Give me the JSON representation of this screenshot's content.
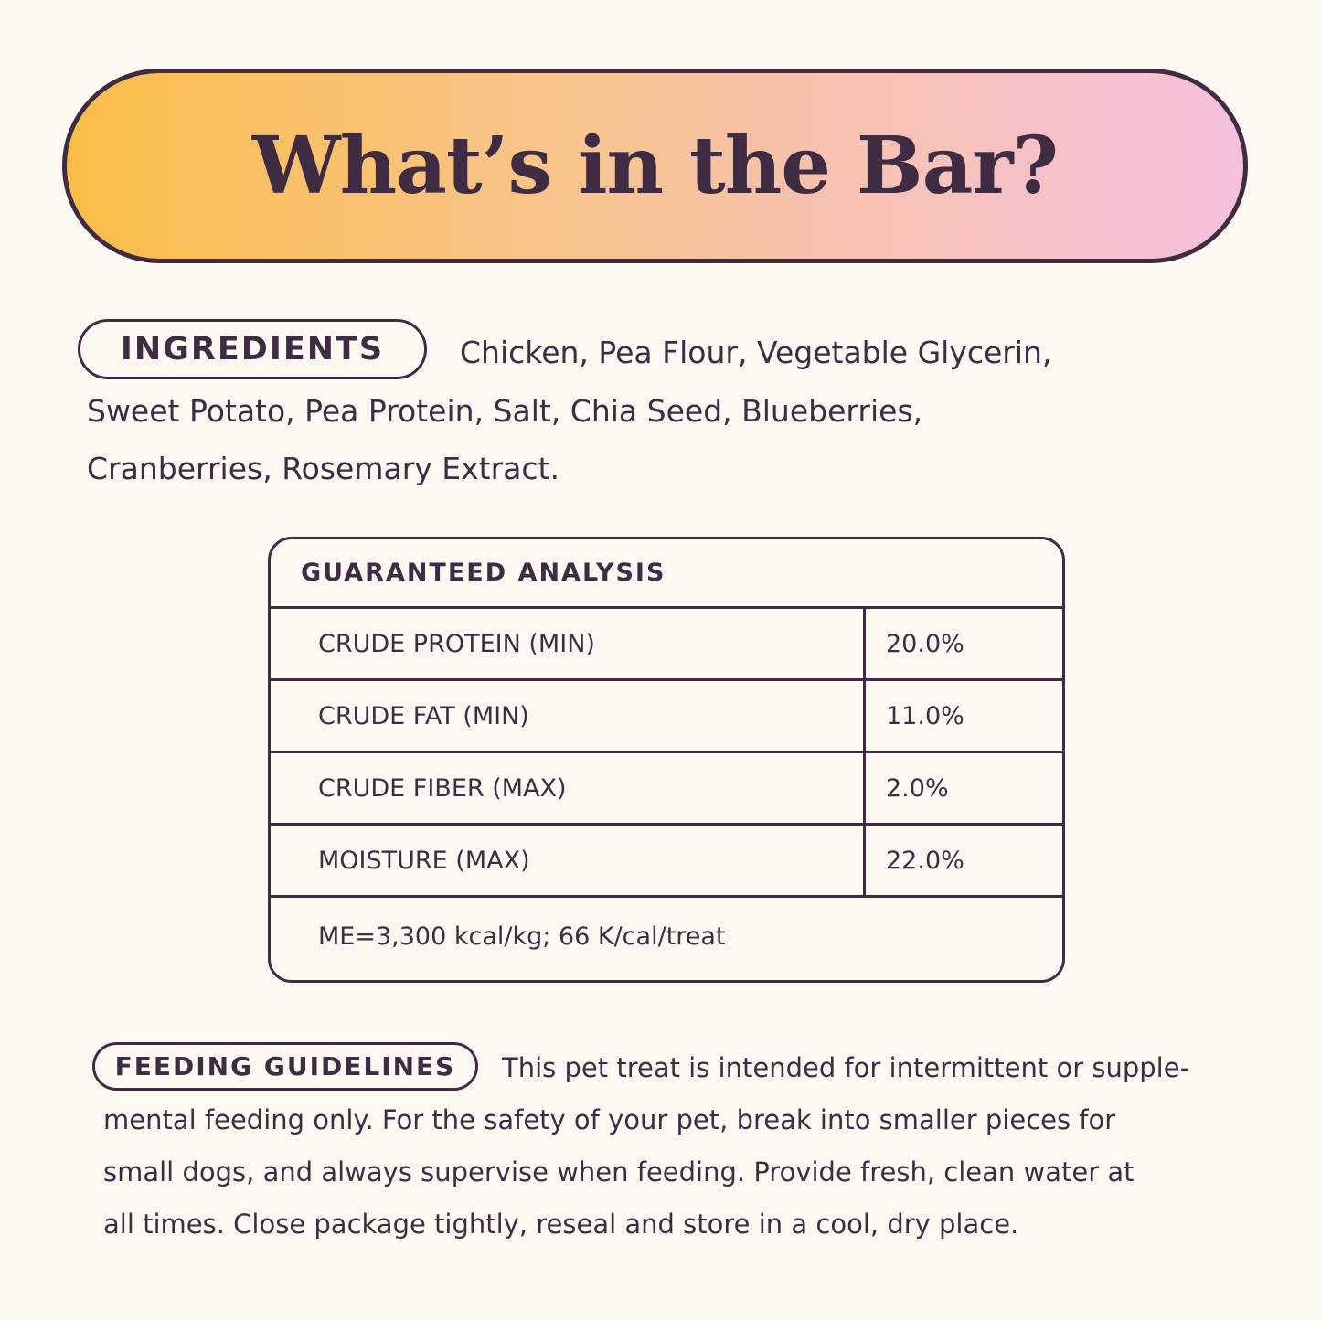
{
  "title": "What’s in the Bar?",
  "colors": {
    "text": "#3f2c42",
    "background": "#fdf8f1",
    "gradient_start": "#fbbd48",
    "gradient_end": "#f5c0dc"
  },
  "ingredients": {
    "label": "INGREDIENTS",
    "lines": [
      "Chicken, Pea Flour, Vegetable Glycerin,",
      "Sweet Potato, Pea Protein, Salt, Chia Seed, Blueberries,",
      "Cranberries, Rosemary Extract."
    ]
  },
  "analysis": {
    "header": "GUARANTEED ANALYSIS",
    "rows": [
      {
        "label": "CRUDE PROTEIN (MIN)",
        "value": "20.0%"
      },
      {
        "label": "CRUDE FAT (MIN)",
        "value": "11.0%"
      },
      {
        "label": "CRUDE FIBER (MAX)",
        "value": "2.0%"
      },
      {
        "label": "MOISTURE (MAX)",
        "value": "22.0%"
      }
    ],
    "footer": "ME=3,300 kcal/kg; 66 K/cal/treat"
  },
  "feeding": {
    "label": "FEEDING GUIDELINES",
    "lines": [
      "This pet treat is intended for intermittent or supple-",
      "mental feeding only. For the safety of your pet, break into smaller pieces for",
      "small dogs, and always supervise when feeding. Provide fresh, clean water at",
      "all times. Close package tightly, reseal and store in a cool, dry place."
    ]
  }
}
